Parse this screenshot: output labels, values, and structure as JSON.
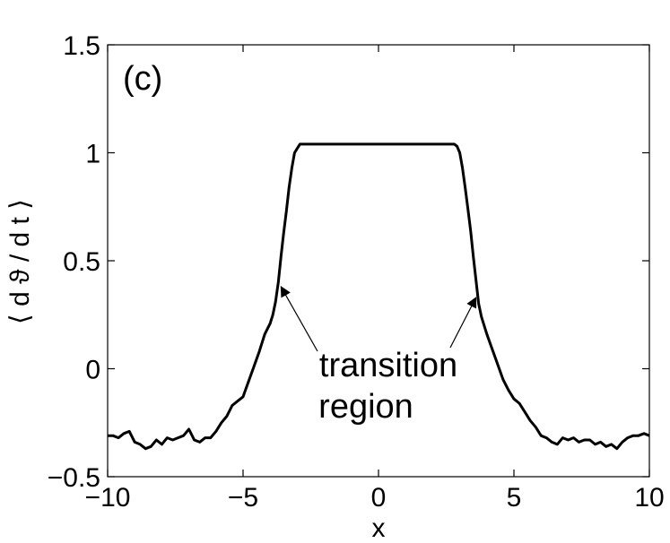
{
  "chart_data": {
    "type": "line",
    "panel_label": "(c)",
    "xlabel": "x",
    "ylabel": "⟨ d ϑ / d t ⟩",
    "xlim": [
      -10,
      10
    ],
    "ylim": [
      -0.5,
      1.5
    ],
    "xticks": [
      -10,
      -5,
      0,
      5,
      10
    ],
    "xtick_labels": [
      "−10",
      "−5",
      "0",
      "5",
      "10"
    ],
    "yticks": [
      -0.5,
      0,
      0.5,
      1,
      1.5
    ],
    "ytick_labels": [
      "−0.5",
      "0",
      "0.5",
      "1",
      "1.5"
    ],
    "grid": false,
    "series": [
      {
        "color": "#000000",
        "x": [
          -10,
          -9.8,
          -9.6,
          -9.4,
          -9.2,
          -9.0,
          -8.8,
          -8.6,
          -8.4,
          -8.2,
          -8.0,
          -7.8,
          -7.6,
          -7.4,
          -7.2,
          -7.0,
          -6.8,
          -6.6,
          -6.4,
          -6.2,
          -6.0,
          -5.8,
          -5.6,
          -5.4,
          -5.2,
          -5.0,
          -4.8,
          -4.6,
          -4.4,
          -4.2,
          -4.0,
          -3.9,
          -3.8,
          -3.7,
          -3.6,
          -3.5,
          -3.4,
          -3.3,
          -3.2,
          -3.1,
          -3.0,
          -2.9,
          -2.8,
          -2.6,
          -2.0,
          0,
          2.0,
          2.6,
          2.8,
          2.9,
          3.0,
          3.1,
          3.2,
          3.3,
          3.4,
          3.5,
          3.6,
          3.7,
          3.8,
          3.9,
          4.0,
          4.2,
          4.4,
          4.6,
          4.8,
          5.0,
          5.2,
          5.4,
          5.6,
          5.8,
          6.0,
          6.2,
          6.4,
          6.6,
          6.8,
          7.0,
          7.2,
          7.4,
          7.6,
          7.8,
          8.0,
          8.2,
          8.4,
          8.6,
          8.8,
          9.0,
          9.2,
          9.4,
          9.6,
          9.8,
          10
        ],
        "y": [
          -0.31,
          -0.31,
          -0.32,
          -0.3,
          -0.29,
          -0.34,
          -0.35,
          -0.37,
          -0.36,
          -0.33,
          -0.35,
          -0.32,
          -0.33,
          -0.32,
          -0.31,
          -0.28,
          -0.33,
          -0.34,
          -0.32,
          -0.32,
          -0.29,
          -0.25,
          -0.22,
          -0.17,
          -0.15,
          -0.13,
          -0.06,
          0.01,
          0.08,
          0.16,
          0.21,
          0.25,
          0.31,
          0.4,
          0.52,
          0.63,
          0.73,
          0.84,
          0.93,
          1.0,
          1.02,
          1.04,
          1.04,
          1.04,
          1.04,
          1.04,
          1.04,
          1.04,
          1.04,
          1.03,
          1.0,
          0.93,
          0.84,
          0.74,
          0.64,
          0.52,
          0.41,
          0.3,
          0.24,
          0.2,
          0.16,
          0.09,
          0.02,
          -0.05,
          -0.1,
          -0.14,
          -0.16,
          -0.2,
          -0.24,
          -0.27,
          -0.31,
          -0.32,
          -0.34,
          -0.35,
          -0.32,
          -0.33,
          -0.32,
          -0.34,
          -0.33,
          -0.33,
          -0.35,
          -0.34,
          -0.36,
          -0.35,
          -0.37,
          -0.34,
          -0.32,
          -0.31,
          -0.31,
          -0.3,
          -0.31
        ]
      }
    ],
    "annotation": {
      "lines": [
        "transition",
        "region"
      ],
      "arrow_targets": [
        {
          "x": -3.6,
          "y": 0.38
        },
        {
          "x": 3.6,
          "y": 0.33
        }
      ]
    }
  }
}
